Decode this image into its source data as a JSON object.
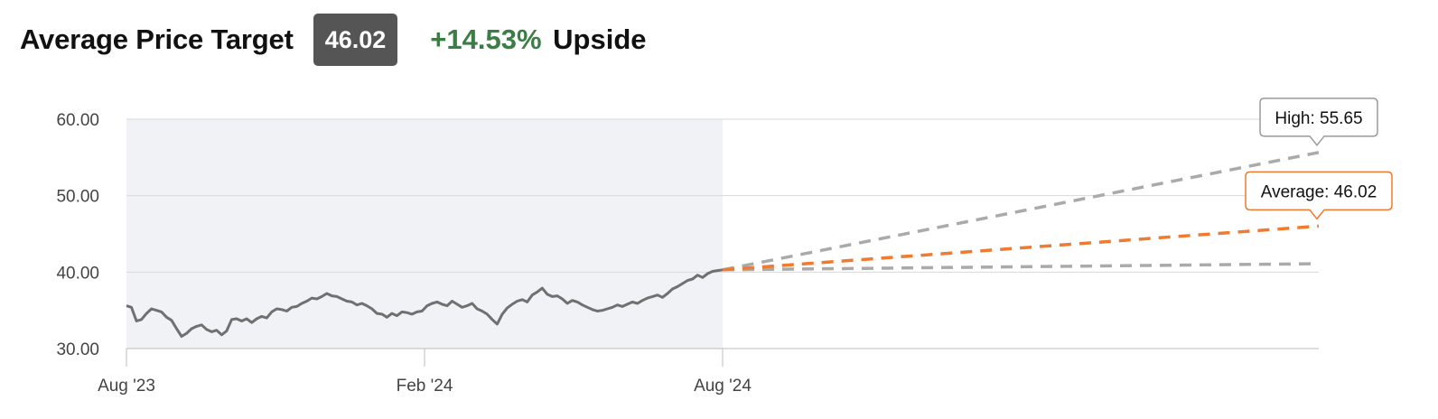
{
  "header": {
    "title": "Average Price Target",
    "badge_value": "46.02",
    "upside_pct": "+14.53%",
    "upside_word": "Upside"
  },
  "colors": {
    "price_line": "#707070",
    "average_target": "#f07a30",
    "high_low_target": "#aaaaaa",
    "upside_green": "#3b7d45",
    "history_shade": "#f1f2f6",
    "badge_bg": "#555555"
  },
  "chart_data": {
    "type": "line",
    "title": "",
    "xlabel": "",
    "ylabel": "",
    "ylim": [
      30,
      60
    ],
    "y_ticks": [
      "60.00",
      "50.00",
      "40.00",
      "30.00"
    ],
    "x_ticks": [
      "Aug '23",
      "Feb '24",
      "Aug '24"
    ],
    "grid": true,
    "history_shaded": true,
    "series": [
      {
        "kind": "price",
        "x_start": "Aug '23",
        "x_end": "Aug '24",
        "values": [
          35.6,
          35.4,
          33.6,
          33.8,
          34.6,
          35.2,
          35.0,
          34.8,
          34.1,
          33.7,
          32.6,
          31.6,
          32.0,
          32.6,
          32.9,
          33.1,
          32.5,
          32.2,
          32.4,
          31.8,
          32.3,
          33.8,
          33.9,
          33.6,
          33.9,
          33.4,
          33.9,
          34.2,
          34.0,
          34.8,
          35.2,
          35.1,
          34.9,
          35.4,
          35.5,
          35.9,
          36.2,
          36.6,
          36.5,
          36.8,
          37.2,
          36.9,
          36.8,
          36.5,
          36.2,
          36.1,
          35.7,
          35.9,
          35.6,
          35.2,
          34.6,
          34.5,
          34.1,
          34.6,
          34.3,
          34.8,
          34.7,
          34.5,
          34.8,
          34.9,
          35.6,
          35.9,
          36.1,
          35.8,
          35.6,
          36.2,
          35.8,
          35.4,
          35.6,
          35.9,
          35.2,
          34.9,
          34.5,
          33.8,
          33.2,
          34.5,
          35.3,
          35.8,
          36.2,
          36.4,
          36.1,
          37.0,
          37.4,
          37.9,
          37.1,
          36.8,
          36.9,
          36.5,
          35.9,
          36.3,
          36.1,
          35.7,
          35.4,
          35.1,
          34.9,
          35.0,
          35.2,
          35.4,
          35.7,
          35.5,
          35.8,
          36.1,
          35.9,
          36.3,
          36.6,
          36.8,
          37.0,
          36.7,
          37.2,
          37.8,
          38.1,
          38.5,
          38.9,
          39.1,
          39.6,
          39.3,
          39.8,
          40.1,
          40.2,
          40.3
        ],
        "name": ""
      },
      {
        "kind": "target",
        "level": "high",
        "from": 40.3,
        "to": 55.65,
        "name": "High",
        "label": "High: 55.65"
      },
      {
        "kind": "target",
        "level": "average",
        "from": 40.3,
        "to": 46.02,
        "name": "Average",
        "label": "Average: 46.02"
      },
      {
        "kind": "target",
        "level": "low",
        "from": 40.3,
        "to": 41.1,
        "name": ""
      }
    ]
  }
}
